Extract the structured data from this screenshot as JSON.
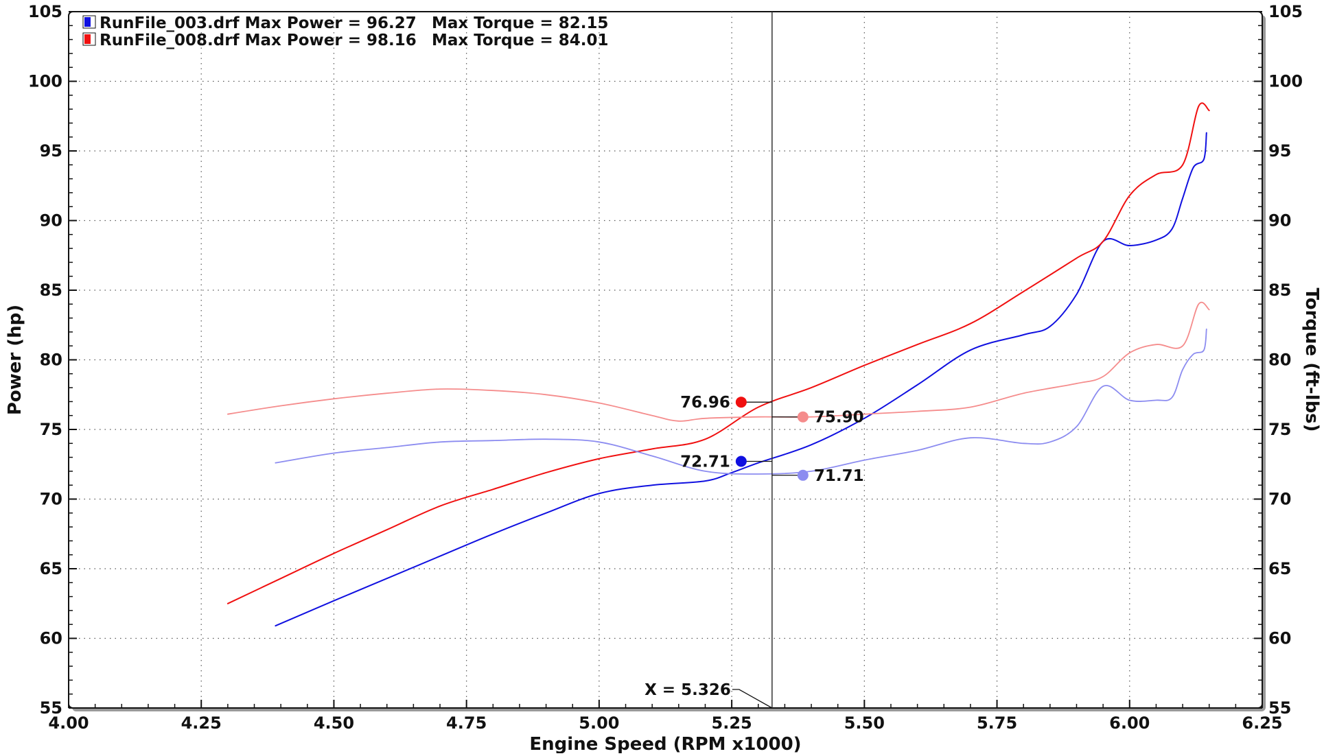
{
  "chart_data": {
    "type": "line",
    "xlabel": "Engine Speed (RPM x1000)",
    "ylabel": "Power (hp)",
    "y2label": "Torque (ft-lbs)",
    "xlim": [
      4.0,
      6.25
    ],
    "ylim": [
      55,
      105
    ],
    "y2lim": [
      55,
      105
    ],
    "x_ticks": [
      "4.00",
      "4.25",
      "4.50",
      "4.75",
      "5.00",
      "5.25",
      "5.50",
      "5.75",
      "6.00",
      "6.25"
    ],
    "y_ticks": [
      "55",
      "60",
      "65",
      "70",
      "75",
      "80",
      "85",
      "90",
      "95",
      "100",
      "105"
    ],
    "y2_ticks": [
      "55",
      "60",
      "65",
      "70",
      "75",
      "80",
      "85",
      "90",
      "95",
      "100",
      "105"
    ],
    "grid": true,
    "legend_position": "top-left",
    "legend": [
      {
        "file": "RunFile_003.drf",
        "power_text": "Max Power = 96.27",
        "torque_text": "Max Torque = 82.15",
        "color": "#1010e0"
      },
      {
        "file": "RunFile_008.drf",
        "power_text": "Max Power = 98.16",
        "torque_text": "Max Torque = 84.01",
        "color": "#f01010"
      }
    ],
    "cursor": {
      "x": 5.326,
      "label": "X = 5.326"
    },
    "series": [
      {
        "name": "RunFile_003.drf Power",
        "axis": "left",
        "color": "#1010e0",
        "width": 2.0,
        "points": [
          [
            4.39,
            60.9
          ],
          [
            4.5,
            62.7
          ],
          [
            4.6,
            64.3
          ],
          [
            4.7,
            65.9
          ],
          [
            4.8,
            67.5
          ],
          [
            4.9,
            69.0
          ],
          [
            5.0,
            70.4
          ],
          [
            5.1,
            71.0
          ],
          [
            5.2,
            71.3
          ],
          [
            5.25,
            71.9
          ],
          [
            5.3,
            72.6
          ],
          [
            5.4,
            73.9
          ],
          [
            5.5,
            75.8
          ],
          [
            5.6,
            78.2
          ],
          [
            5.7,
            80.7
          ],
          [
            5.8,
            81.8
          ],
          [
            5.85,
            82.4
          ],
          [
            5.9,
            84.7
          ],
          [
            5.95,
            88.5
          ],
          [
            6.0,
            88.2
          ],
          [
            6.05,
            88.6
          ],
          [
            6.08,
            89.4
          ],
          [
            6.1,
            91.6
          ],
          [
            6.12,
            93.8
          ],
          [
            6.14,
            94.4
          ],
          [
            6.145,
            96.3
          ]
        ]
      },
      {
        "name": "RunFile_008.drf Power",
        "axis": "left",
        "color": "#f01010",
        "width": 2.0,
        "points": [
          [
            4.3,
            62.5
          ],
          [
            4.4,
            64.3
          ],
          [
            4.5,
            66.1
          ],
          [
            4.6,
            67.8
          ],
          [
            4.7,
            69.5
          ],
          [
            4.8,
            70.7
          ],
          [
            4.9,
            71.9
          ],
          [
            5.0,
            72.9
          ],
          [
            5.1,
            73.6
          ],
          [
            5.2,
            74.3
          ],
          [
            5.3,
            76.6
          ],
          [
            5.4,
            78.0
          ],
          [
            5.5,
            79.6
          ],
          [
            5.6,
            81.1
          ],
          [
            5.7,
            82.6
          ],
          [
            5.8,
            84.9
          ],
          [
            5.9,
            87.3
          ],
          [
            5.95,
            88.5
          ],
          [
            6.0,
            91.8
          ],
          [
            6.05,
            93.3
          ],
          [
            6.1,
            94.0
          ],
          [
            6.13,
            98.2
          ],
          [
            6.15,
            97.9
          ]
        ]
      },
      {
        "name": "RunFile_003.drf Torque",
        "axis": "right",
        "color": "#8c8cf0",
        "width": 1.8,
        "points": [
          [
            4.39,
            72.6
          ],
          [
            4.5,
            73.3
          ],
          [
            4.6,
            73.7
          ],
          [
            4.7,
            74.1
          ],
          [
            4.8,
            74.2
          ],
          [
            4.9,
            74.3
          ],
          [
            5.0,
            74.1
          ],
          [
            5.1,
            73.1
          ],
          [
            5.2,
            72.0
          ],
          [
            5.3,
            71.8
          ],
          [
            5.4,
            72.0
          ],
          [
            5.5,
            72.8
          ],
          [
            5.6,
            73.5
          ],
          [
            5.7,
            74.4
          ],
          [
            5.8,
            74.0
          ],
          [
            5.85,
            74.1
          ],
          [
            5.9,
            75.2
          ],
          [
            5.95,
            78.1
          ],
          [
            6.0,
            77.1
          ],
          [
            6.05,
            77.1
          ],
          [
            6.08,
            77.3
          ],
          [
            6.1,
            79.3
          ],
          [
            6.12,
            80.4
          ],
          [
            6.14,
            80.7
          ],
          [
            6.145,
            82.2
          ]
        ]
      },
      {
        "name": "RunFile_008.drf Torque",
        "axis": "right",
        "color": "#f58c8c",
        "width": 1.8,
        "points": [
          [
            4.3,
            76.1
          ],
          [
            4.4,
            76.7
          ],
          [
            4.5,
            77.2
          ],
          [
            4.6,
            77.6
          ],
          [
            4.7,
            77.9
          ],
          [
            4.8,
            77.8
          ],
          [
            4.9,
            77.5
          ],
          [
            5.0,
            76.9
          ],
          [
            5.1,
            76.0
          ],
          [
            5.15,
            75.6
          ],
          [
            5.2,
            75.8
          ],
          [
            5.3,
            75.9
          ],
          [
            5.4,
            75.9
          ],
          [
            5.5,
            76.1
          ],
          [
            5.6,
            76.3
          ],
          [
            5.7,
            76.6
          ],
          [
            5.8,
            77.6
          ],
          [
            5.9,
            78.3
          ],
          [
            5.95,
            78.8
          ],
          [
            6.0,
            80.5
          ],
          [
            6.05,
            81.1
          ],
          [
            6.1,
            81.0
          ],
          [
            6.13,
            84.0
          ],
          [
            6.15,
            83.6
          ]
        ]
      }
    ],
    "markers": [
      {
        "series": "RunFile_008.drf Power",
        "value": 76.96,
        "label": "76.96",
        "color": "#f01010",
        "side": "left"
      },
      {
        "series": "RunFile_008.drf Torque",
        "value": 75.9,
        "label": "75.90",
        "color": "#f58c8c",
        "side": "right"
      },
      {
        "series": "RunFile_003.drf Power",
        "value": 72.71,
        "label": "72.71",
        "color": "#1010e0",
        "side": "left"
      },
      {
        "series": "RunFile_003.drf Torque",
        "value": 71.71,
        "label": "71.71",
        "color": "#8c8cf0",
        "side": "right"
      }
    ]
  }
}
